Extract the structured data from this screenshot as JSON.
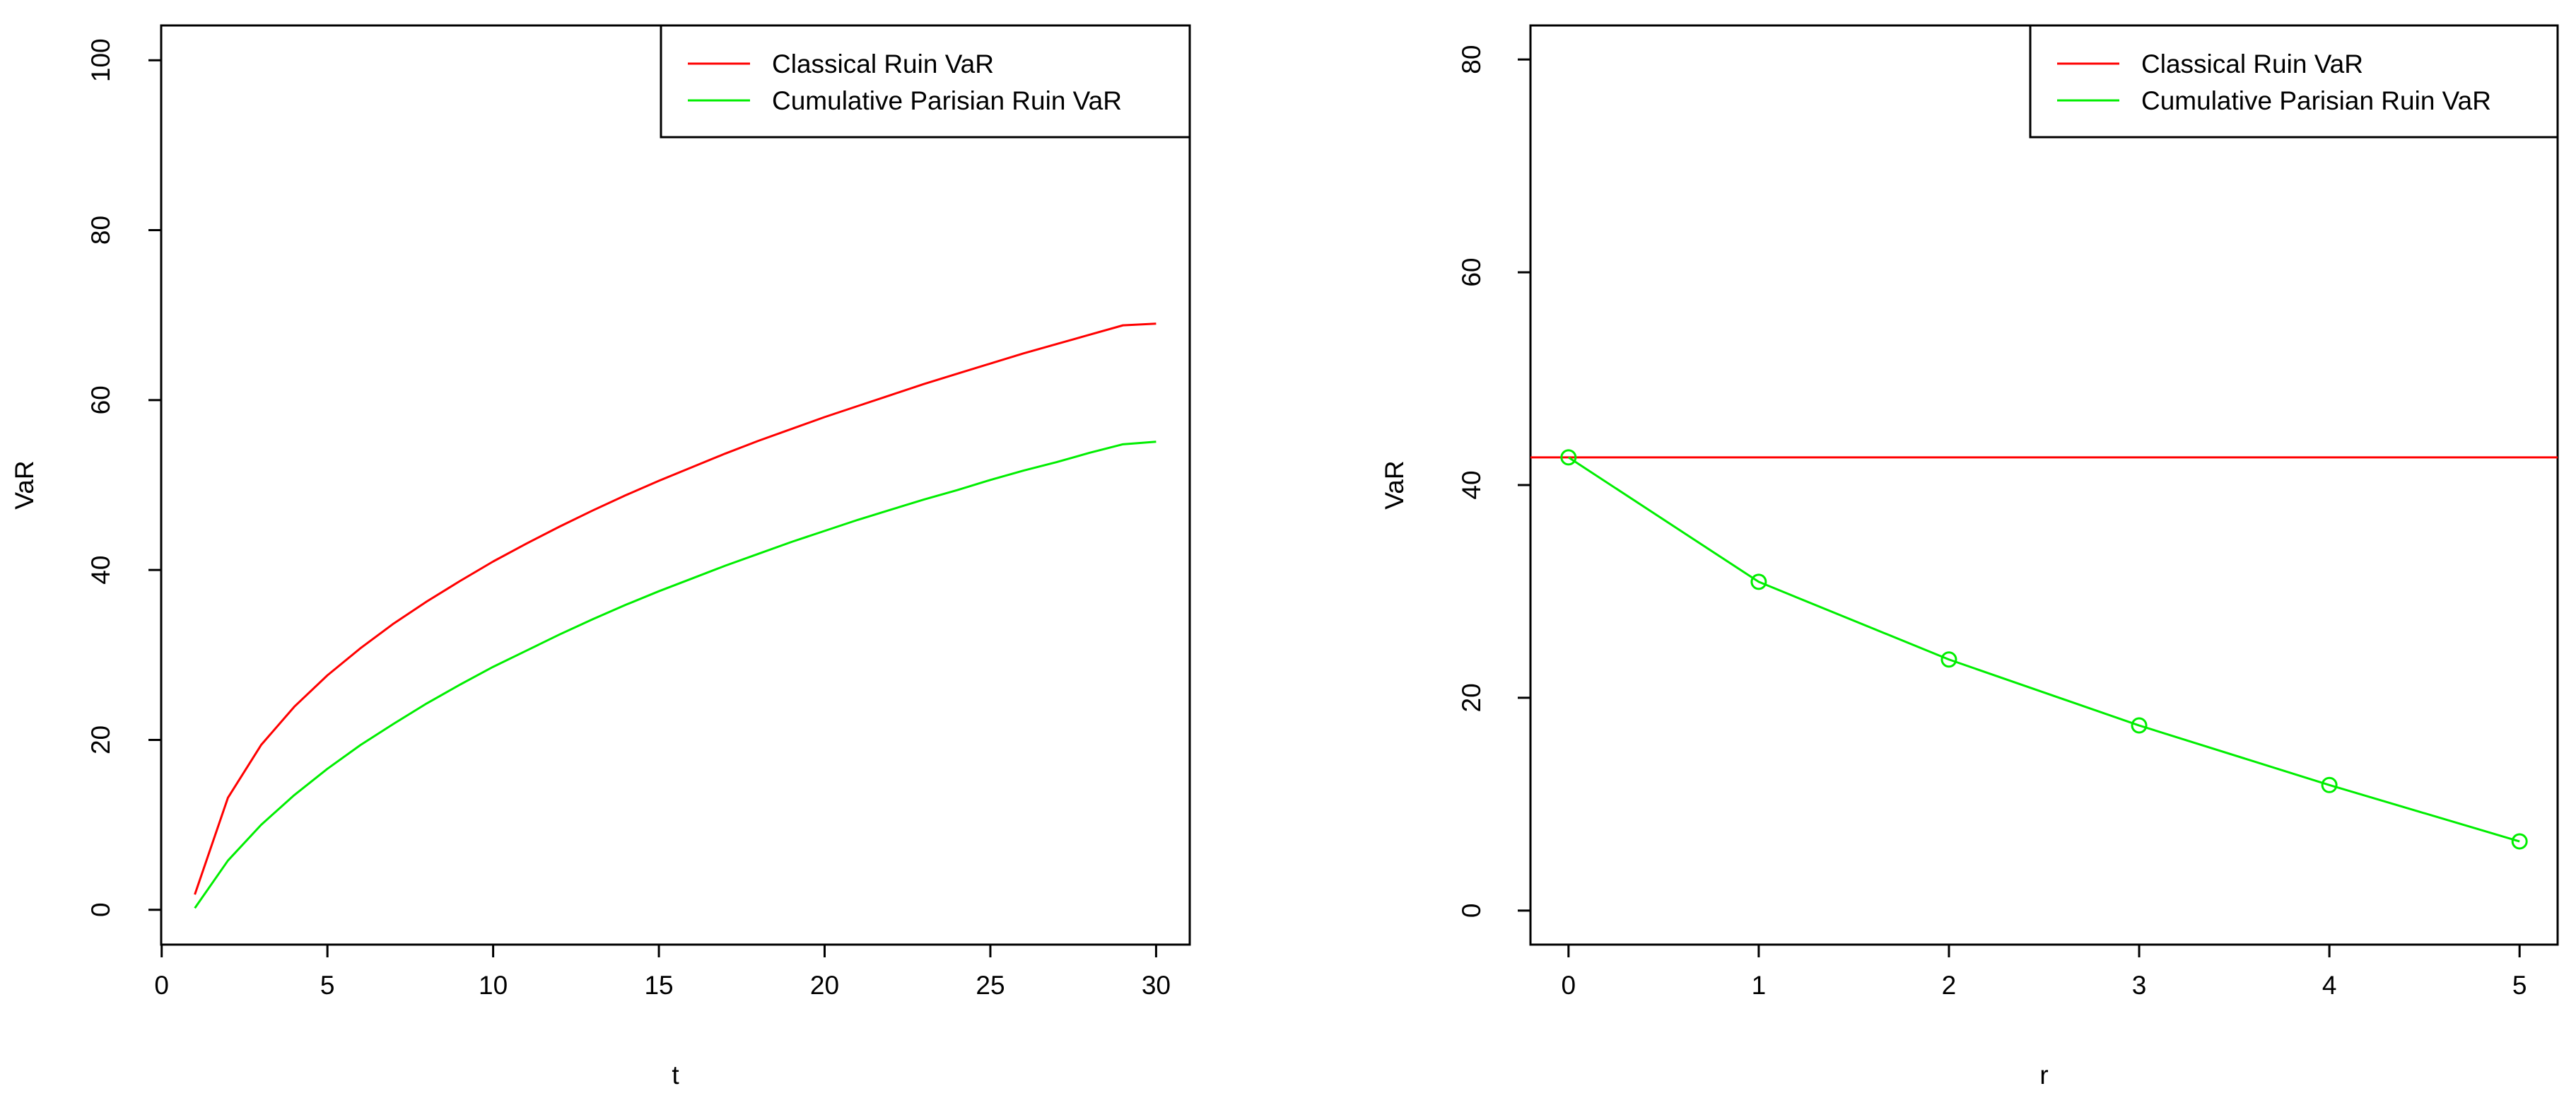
{
  "chart_data": [
    {
      "type": "line",
      "title": "",
      "xlabel": "t",
      "ylabel": "VaR",
      "xlim": [
        1,
        30
      ],
      "ylim": [
        0,
        100
      ],
      "x_ticks": [
        "0",
        "5",
        "10",
        "15",
        "20",
        "25",
        "30"
      ],
      "y_ticks": [
        "0",
        "20",
        "40",
        "60",
        "80",
        "100"
      ],
      "legend_position": "top-right",
      "x": [
        1,
        2,
        3,
        4,
        5,
        6,
        7,
        8,
        9,
        10,
        11,
        12,
        13,
        14,
        15,
        16,
        17,
        18,
        19,
        20,
        21,
        22,
        23,
        24,
        25,
        26,
        27,
        28,
        29,
        30
      ],
      "series": [
        {
          "name": "Classical Ruin VaR",
          "color": "#ff0000",
          "markers": false,
          "values": [
            1.8,
            13.2,
            19.4,
            23.9,
            27.6,
            30.8,
            33.7,
            36.3,
            38.7,
            41.0,
            43.1,
            45.1,
            47.0,
            48.8,
            50.5,
            52.1,
            53.7,
            55.2,
            56.6,
            58.0,
            59.3,
            60.6,
            61.9,
            63.1,
            64.3,
            65.5,
            66.6,
            67.7,
            68.8,
            69.0
          ]
        },
        {
          "name": "Cumulative Parisian Ruin VaR",
          "color": "#00ee00",
          "markers": false,
          "values": [
            0.2,
            5.8,
            10.0,
            13.5,
            16.6,
            19.4,
            21.9,
            24.3,
            26.5,
            28.6,
            30.5,
            32.4,
            34.2,
            35.9,
            37.5,
            39.0,
            40.5,
            41.9,
            43.3,
            44.6,
            45.9,
            47.1,
            48.3,
            49.4,
            50.6,
            51.7,
            52.7,
            53.8,
            54.8,
            55.1
          ]
        }
      ]
    },
    {
      "type": "line",
      "title": "",
      "xlabel": "r",
      "ylabel": "VaR",
      "xlim": [
        0,
        5
      ],
      "ylim": [
        0,
        80
      ],
      "x_ticks": [
        "0",
        "1",
        "2",
        "3",
        "4",
        "5"
      ],
      "y_ticks": [
        "0",
        "20",
        "40",
        "60",
        "80"
      ],
      "legend_position": "top-right",
      "x": [
        0,
        1,
        2,
        3,
        4,
        5
      ],
      "series": [
        {
          "name": "Classical Ruin VaR",
          "color": "#ff0000",
          "markers": false,
          "horizontal": true,
          "values": [
            42.6,
            42.6,
            42.6,
            42.6,
            42.6,
            42.6
          ]
        },
        {
          "name": "Cumulative Parisian Ruin VaR",
          "color": "#00ee00",
          "markers": true,
          "values": [
            42.6,
            30.9,
            23.6,
            17.4,
            11.8,
            6.5
          ]
        }
      ]
    }
  ]
}
